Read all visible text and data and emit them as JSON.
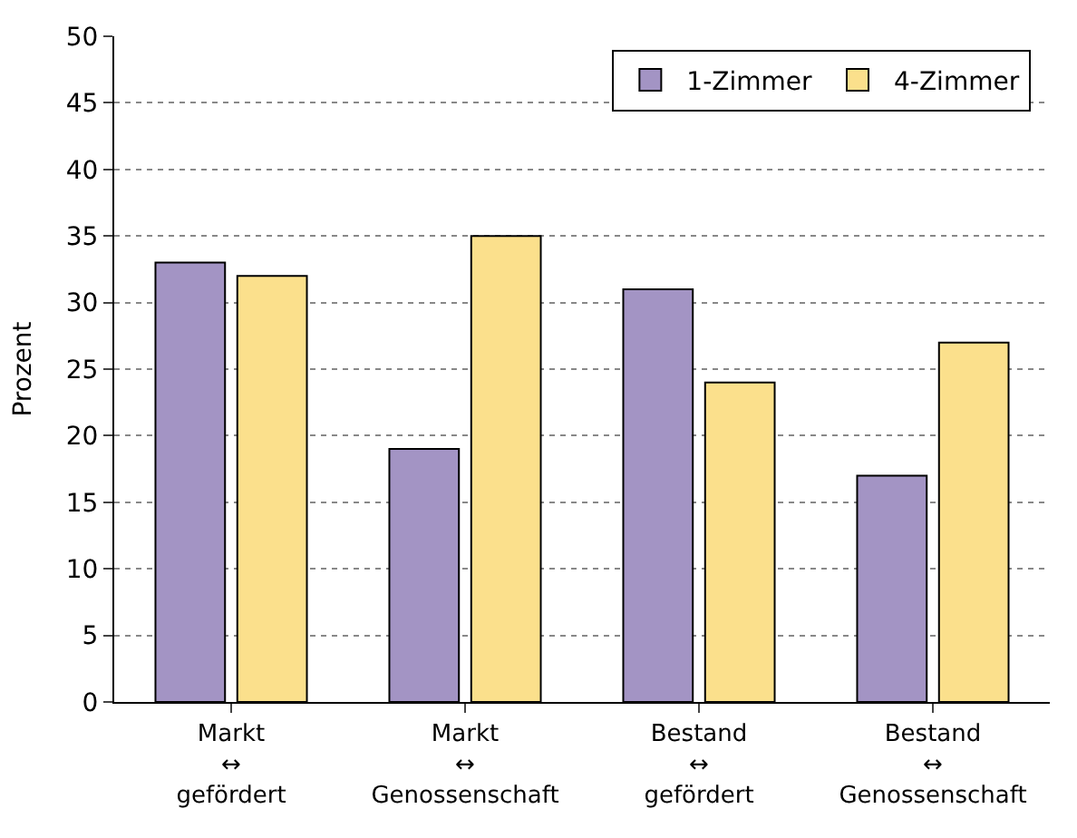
{
  "chart_data": {
    "type": "bar",
    "ylabel": "Prozent",
    "categories": [
      "Markt\n↔\ngefördert",
      "Markt\n↔\nGenossenschaft",
      "Bestand\n↔\ngefördert",
      "Bestand\n↔\nGenossenschaft"
    ],
    "series": [
      {
        "name": "1-Zimmer",
        "color": "#a394c4",
        "values": [
          33,
          19,
          31,
          17
        ]
      },
      {
        "name": "4-Zimmer",
        "color": "#fbe08c",
        "values": [
          32,
          35,
          24,
          27
        ]
      }
    ],
    "ylim": [
      0,
      50
    ],
    "yticks": [
      0,
      5,
      10,
      15,
      20,
      25,
      30,
      35,
      40,
      45,
      50
    ],
    "grid": "y",
    "legend": "top right"
  }
}
